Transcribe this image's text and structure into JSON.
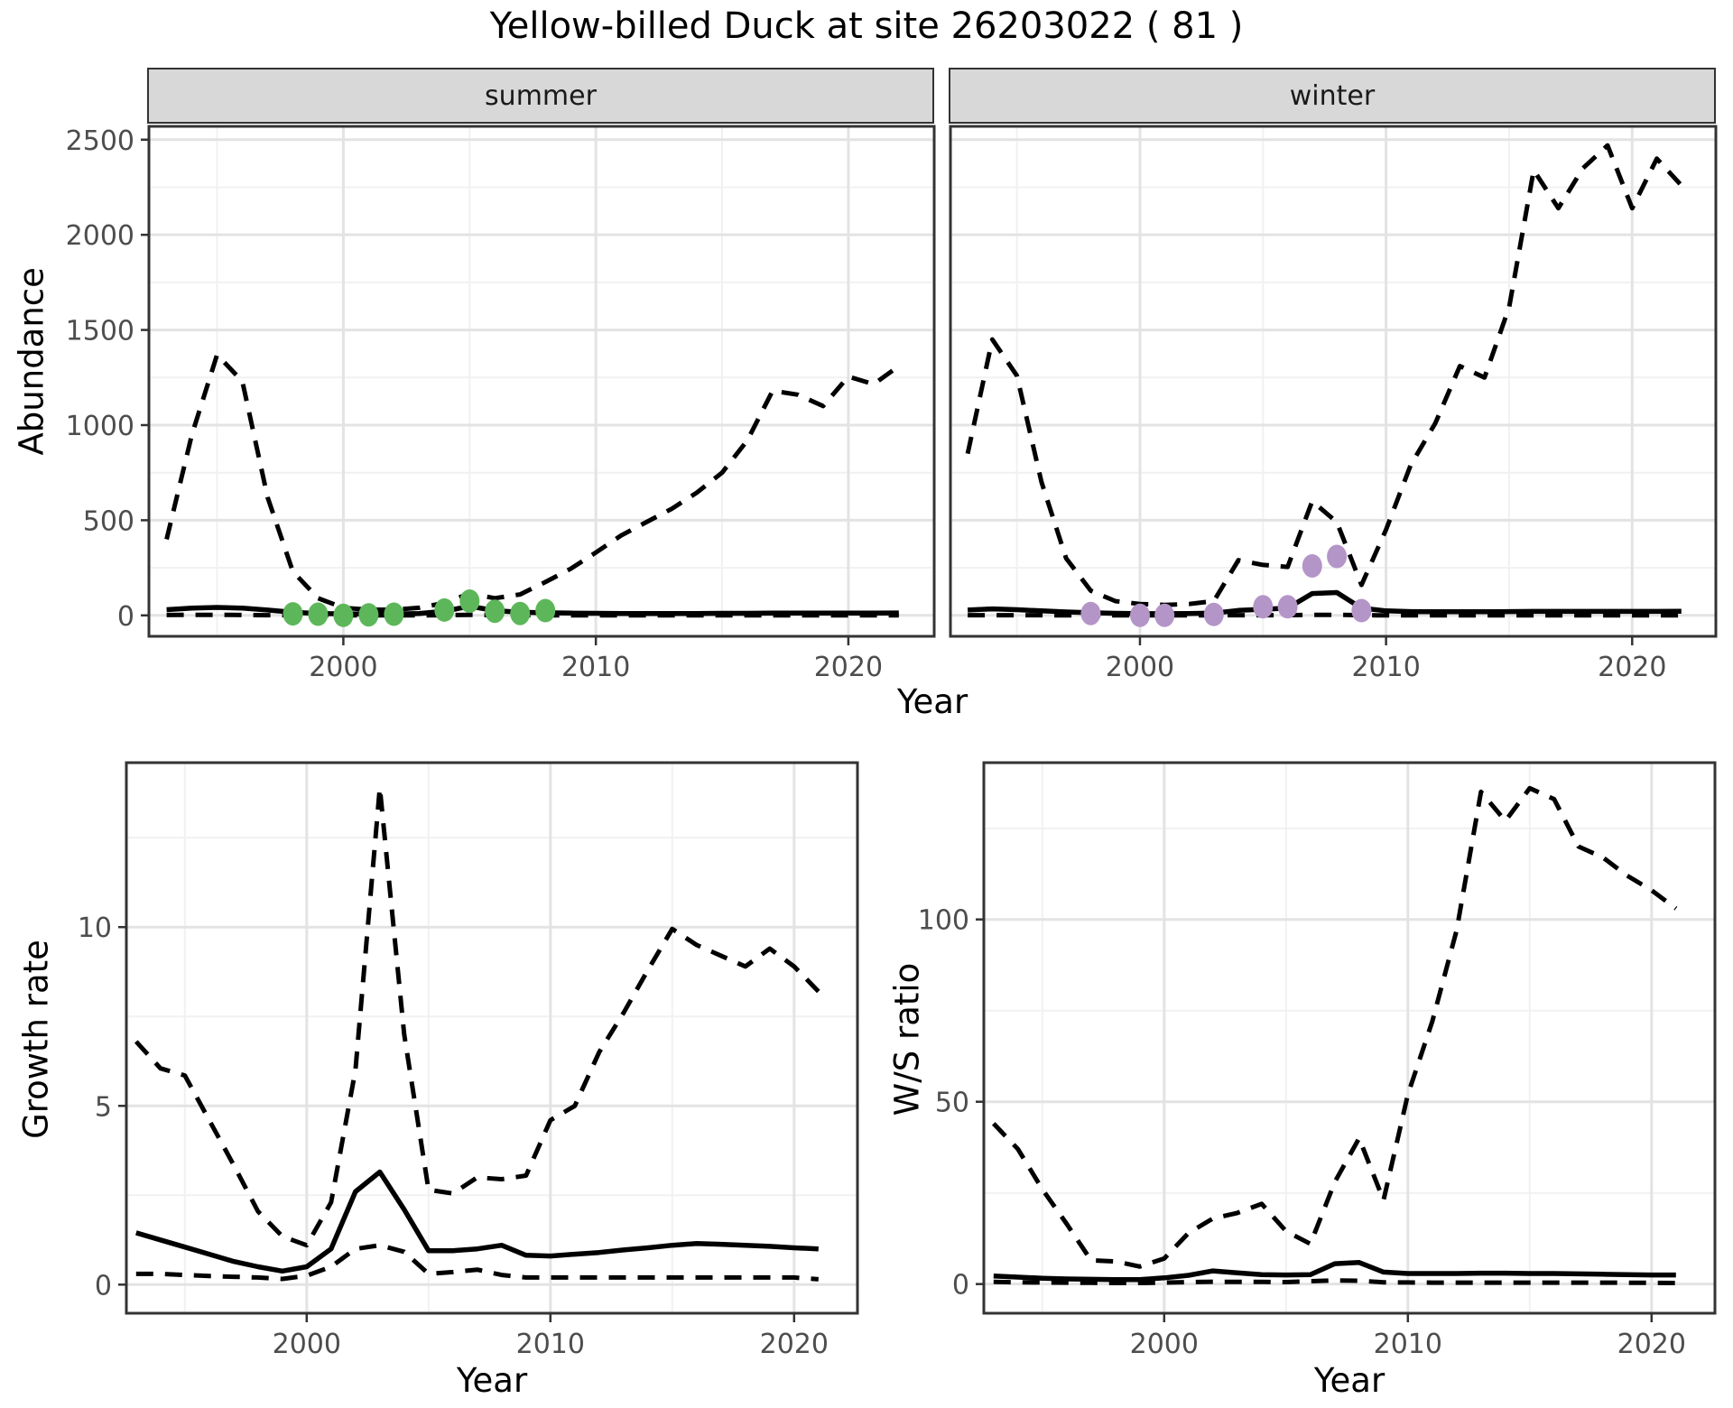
{
  "title": "Yellow-billed Duck at site 26203022 ( 81 )",
  "facets": {
    "summer": "summer",
    "winter": "winter"
  },
  "axis_labels": {
    "abundance": "Abundance",
    "year_top": "Year",
    "growth_rate": "Growth rate",
    "ws_ratio": "W/S ratio",
    "year_growth": "Year",
    "year_ws": "Year"
  },
  "colors": {
    "line": "#000000",
    "summer_points": "#5db75a",
    "winter_points": "#b495c8",
    "grid_major": "#e3e3e3",
    "grid_minor": "#f1f1f1",
    "panel_border": "#333333",
    "tick_mark": "#333333",
    "tick_text": "#4d4d4d",
    "strip_bg": "#d8d8d8"
  },
  "chart_data": [
    {
      "id": "abundance-summer",
      "type": "line",
      "facet": "summer",
      "title": "Yellow-billed Duck at site 26203022 ( 81 )",
      "xlabel": "Year",
      "ylabel": "Abundance",
      "xlim": [
        1992.3,
        2023.4
      ],
      "ylim": [
        -110,
        2570
      ],
      "xticks": [
        2000,
        2010,
        2020
      ],
      "xticks_minor": [
        1995,
        2005,
        2015
      ],
      "yticks": [
        0,
        500,
        1000,
        1500,
        2000,
        2500
      ],
      "yticks_minor": [
        250,
        750,
        1250,
        1750,
        2250
      ],
      "grid": true,
      "legend": "none",
      "x": [
        1993,
        1994,
        1995,
        1996,
        1997,
        1998,
        1999,
        2000,
        2001,
        2002,
        2003,
        2004,
        2005,
        2006,
        2007,
        2008,
        2009,
        2010,
        2011,
        2012,
        2013,
        2014,
        2015,
        2016,
        2017,
        2018,
        2019,
        2020,
        2021,
        2022
      ],
      "series": [
        {
          "name": "upper_ci",
          "style": "dashed",
          "values": [
            400,
            950,
            1370,
            1230,
            620,
            230,
            90,
            40,
            30,
            30,
            40,
            65,
            115,
            90,
            110,
            175,
            245,
            330,
            420,
            490,
            560,
            645,
            750,
            920,
            1180,
            1160,
            1100,
            1255,
            1215,
            1310
          ]
        },
        {
          "name": "median",
          "style": "solid",
          "values": [
            30,
            38,
            42,
            38,
            28,
            16,
            10,
            8,
            7,
            7,
            10,
            22,
            48,
            25,
            16,
            14,
            12,
            11,
            10,
            10,
            10,
            10,
            11,
            11,
            12,
            12,
            12,
            12,
            12,
            13
          ]
        },
        {
          "name": "lower_ci",
          "style": "dashed",
          "values": [
            2,
            3,
            3,
            2,
            1,
            1,
            0,
            0,
            0,
            0,
            0,
            1,
            3,
            1,
            0,
            0,
            0,
            0,
            0,
            0,
            0,
            0,
            0,
            0,
            0,
            0,
            0,
            0,
            0,
            0
          ]
        }
      ],
      "points": {
        "name": "observed_counts",
        "color_key": "summer_points",
        "x": [
          1998,
          1999,
          2000,
          2001,
          2002,
          2004,
          2005,
          2006,
          2007,
          2008
        ],
        "y": [
          8,
          6,
          0,
          3,
          6,
          28,
          75,
          22,
          10,
          25
        ]
      }
    },
    {
      "id": "abundance-winter",
      "type": "line",
      "facet": "winter",
      "xlabel": "Year",
      "ylabel": "Abundance",
      "xlim": [
        1992.3,
        2023.4
      ],
      "ylim": [
        -110,
        2570
      ],
      "xticks": [
        2000,
        2010,
        2020
      ],
      "xticks_minor": [
        1995,
        2005,
        2015
      ],
      "yticks": [
        0,
        500,
        1000,
        1500,
        2000,
        2500
      ],
      "yticks_minor": [
        250,
        750,
        1250,
        1750,
        2250
      ],
      "grid": true,
      "legend": "none",
      "x": [
        1993,
        1994,
        1995,
        1996,
        1997,
        1998,
        1999,
        2000,
        2001,
        2002,
        2003,
        2004,
        2005,
        2006,
        2007,
        2008,
        2009,
        2010,
        2011,
        2012,
        2013,
        2014,
        2015,
        2016,
        2017,
        2018,
        2019,
        2020,
        2021,
        2022
      ],
      "series": [
        {
          "name": "upper_ci",
          "style": "dashed",
          "values": [
            850,
            1450,
            1260,
            700,
            300,
            130,
            75,
            60,
            55,
            60,
            75,
            290,
            265,
            255,
            600,
            490,
            160,
            450,
            790,
            1010,
            1310,
            1250,
            1620,
            2340,
            2140,
            2350,
            2470,
            2140,
            2400,
            2260
          ]
        },
        {
          "name": "median",
          "style": "solid",
          "values": [
            28,
            34,
            30,
            24,
            18,
            14,
            11,
            9,
            9,
            10,
            12,
            26,
            32,
            38,
            115,
            120,
            38,
            24,
            20,
            19,
            19,
            19,
            20,
            21,
            21,
            21,
            21,
            21,
            21,
            22
          ]
        },
        {
          "name": "lower_ci",
          "style": "dashed",
          "values": [
            1,
            1,
            1,
            1,
            0,
            0,
            0,
            0,
            0,
            0,
            0,
            1,
            1,
            1,
            3,
            3,
            1,
            0,
            0,
            0,
            0,
            0,
            0,
            0,
            0,
            0,
            0,
            0,
            0,
            0
          ]
        }
      ],
      "points": {
        "name": "observed_counts",
        "color_key": "winter_points",
        "x": [
          1998,
          2000,
          2001,
          2003,
          2005,
          2006,
          2007,
          2008,
          2009
        ],
        "y": [
          10,
          0,
          0,
          5,
          45,
          45,
          260,
          310,
          25
        ]
      }
    },
    {
      "id": "growth-rate",
      "type": "line",
      "xlabel": "Year",
      "ylabel": "Growth rate",
      "xlim": [
        1992.6,
        2022.6
      ],
      "ylim": [
        -0.8,
        14.6
      ],
      "xticks": [
        2000,
        2010,
        2020
      ],
      "xticks_minor": [
        1995,
        2005,
        2015
      ],
      "yticks": [
        0,
        5,
        10
      ],
      "yticks_minor": [
        2.5,
        7.5,
        12.5
      ],
      "grid": true,
      "legend": "none",
      "x": [
        1993,
        1994,
        1995,
        1996,
        1997,
        1998,
        1999,
        2000,
        2001,
        2002,
        2003,
        2004,
        2005,
        2006,
        2007,
        2008,
        2009,
        2010,
        2011,
        2012,
        2013,
        2014,
        2015,
        2016,
        2017,
        2018,
        2019,
        2020,
        2021
      ],
      "series": [
        {
          "name": "upper_ci",
          "style": "dashed",
          "values": [
            6.8,
            6.05,
            5.85,
            4.6,
            3.35,
            2.05,
            1.35,
            1.1,
            2.3,
            6.0,
            13.9,
            7.0,
            2.65,
            2.55,
            3.0,
            2.95,
            3.05,
            4.6,
            5.0,
            6.5,
            7.6,
            8.8,
            9.95,
            9.5,
            9.2,
            8.9,
            9.4,
            8.9,
            8.2
          ]
        },
        {
          "name": "median",
          "style": "solid",
          "values": [
            1.45,
            1.25,
            1.05,
            0.85,
            0.65,
            0.5,
            0.38,
            0.5,
            1.0,
            2.6,
            3.15,
            2.1,
            0.95,
            0.95,
            1.0,
            1.1,
            0.82,
            0.8,
            0.85,
            0.9,
            0.97,
            1.03,
            1.1,
            1.15,
            1.13,
            1.1,
            1.07,
            1.03,
            1.0
          ]
        },
        {
          "name": "lower_ci",
          "style": "dashed",
          "values": [
            0.3,
            0.3,
            0.27,
            0.24,
            0.22,
            0.2,
            0.16,
            0.25,
            0.5,
            1.0,
            1.1,
            0.92,
            0.3,
            0.35,
            0.42,
            0.27,
            0.2,
            0.2,
            0.2,
            0.2,
            0.2,
            0.2,
            0.2,
            0.2,
            0.2,
            0.2,
            0.2,
            0.2,
            0.15
          ]
        }
      ]
    },
    {
      "id": "ws-ratio",
      "type": "line",
      "xlabel": "Year",
      "ylabel": "W/S ratio",
      "xlim": [
        1992.6,
        2022.6
      ],
      "ylim": [
        -8,
        143
      ],
      "xticks": [
        2000,
        2010,
        2020
      ],
      "xticks_minor": [
        1995,
        2005,
        2015
      ],
      "yticks": [
        0,
        50,
        100
      ],
      "yticks_minor": [
        25,
        75,
        125
      ],
      "grid": true,
      "legend": "none",
      "x": [
        1993,
        1994,
        1995,
        1996,
        1997,
        1998,
        1999,
        2000,
        2001,
        2002,
        2003,
        2004,
        2005,
        2006,
        2007,
        2008,
        2009,
        2010,
        2011,
        2012,
        2013,
        2014,
        2015,
        2016,
        2017,
        2018,
        2019,
        2020,
        2021
      ],
      "series": [
        {
          "name": "upper_ci",
          "style": "dashed",
          "values": [
            44,
            37,
            26,
            16.5,
            6.5,
            6.2,
            4.8,
            7,
            14,
            18,
            19.5,
            22,
            14.5,
            11,
            28,
            40,
            23,
            52,
            72,
            97,
            135,
            127,
            136,
            133,
            120,
            117,
            112,
            108,
            103
          ]
        },
        {
          "name": "median",
          "style": "solid",
          "values": [
            2.2,
            1.9,
            1.6,
            1.4,
            1.3,
            1.2,
            1.2,
            1.7,
            2.4,
            3.6,
            3.1,
            2.6,
            2.5,
            2.6,
            5.6,
            5.9,
            3.3,
            2.9,
            2.9,
            2.9,
            3.0,
            3.0,
            2.9,
            2.9,
            2.8,
            2.7,
            2.6,
            2.5,
            2.5
          ]
        },
        {
          "name": "lower_ci",
          "style": "dashed",
          "values": [
            0.6,
            0.5,
            0.45,
            0.4,
            0.35,
            0.3,
            0.3,
            0.4,
            0.55,
            0.65,
            0.6,
            0.6,
            0.55,
            0.8,
            1.0,
            0.9,
            0.5,
            0.45,
            0.4,
            0.4,
            0.4,
            0.4,
            0.4,
            0.4,
            0.4,
            0.38,
            0.36,
            0.34,
            0.3
          ]
        }
      ]
    }
  ]
}
